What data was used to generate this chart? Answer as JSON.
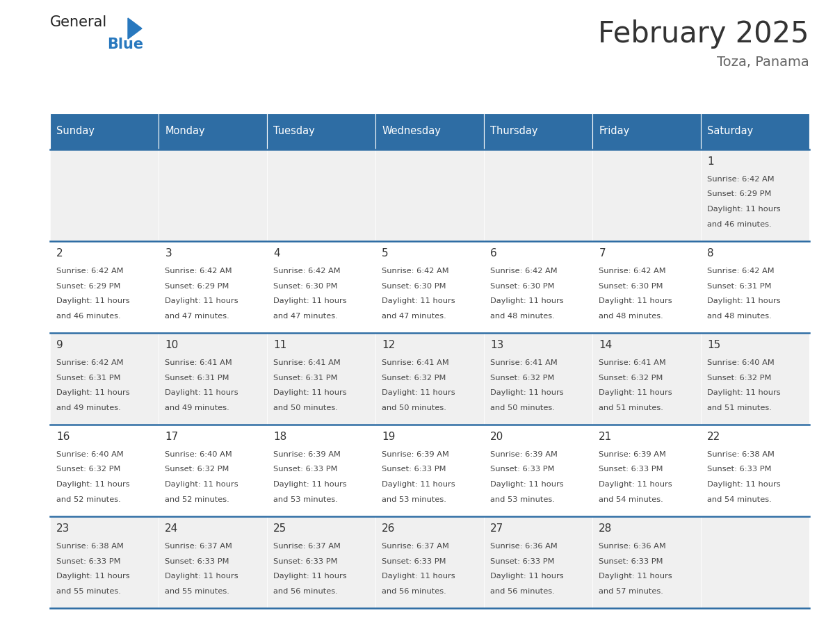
{
  "title": "February 2025",
  "subtitle": "Toza, Panama",
  "days_of_week": [
    "Sunday",
    "Monday",
    "Tuesday",
    "Wednesday",
    "Thursday",
    "Friday",
    "Saturday"
  ],
  "header_bg": "#2E6DA4",
  "header_text": "#FFFFFF",
  "cell_bg_odd": "#F0F0F0",
  "cell_bg_even": "#FFFFFF",
  "cell_text": "#444444",
  "day_num_color": "#333333",
  "border_color": "#2E6DA4",
  "title_color": "#333333",
  "subtitle_color": "#666666",
  "logo_general_color": "#222222",
  "logo_blue_color": "#2878BE",
  "background": "#FFFFFF",
  "calendar": [
    [
      null,
      null,
      null,
      null,
      null,
      null,
      {
        "day": 1,
        "sunrise": "6:42 AM",
        "sunset": "6:29 PM",
        "daylight_hours": 11,
        "daylight_minutes": 46
      }
    ],
    [
      {
        "day": 2,
        "sunrise": "6:42 AM",
        "sunset": "6:29 PM",
        "daylight_hours": 11,
        "daylight_minutes": 46
      },
      {
        "day": 3,
        "sunrise": "6:42 AM",
        "sunset": "6:29 PM",
        "daylight_hours": 11,
        "daylight_minutes": 47
      },
      {
        "day": 4,
        "sunrise": "6:42 AM",
        "sunset": "6:30 PM",
        "daylight_hours": 11,
        "daylight_minutes": 47
      },
      {
        "day": 5,
        "sunrise": "6:42 AM",
        "sunset": "6:30 PM",
        "daylight_hours": 11,
        "daylight_minutes": 47
      },
      {
        "day": 6,
        "sunrise": "6:42 AM",
        "sunset": "6:30 PM",
        "daylight_hours": 11,
        "daylight_minutes": 48
      },
      {
        "day": 7,
        "sunrise": "6:42 AM",
        "sunset": "6:30 PM",
        "daylight_hours": 11,
        "daylight_minutes": 48
      },
      {
        "day": 8,
        "sunrise": "6:42 AM",
        "sunset": "6:31 PM",
        "daylight_hours": 11,
        "daylight_minutes": 48
      }
    ],
    [
      {
        "day": 9,
        "sunrise": "6:42 AM",
        "sunset": "6:31 PM",
        "daylight_hours": 11,
        "daylight_minutes": 49
      },
      {
        "day": 10,
        "sunrise": "6:41 AM",
        "sunset": "6:31 PM",
        "daylight_hours": 11,
        "daylight_minutes": 49
      },
      {
        "day": 11,
        "sunrise": "6:41 AM",
        "sunset": "6:31 PM",
        "daylight_hours": 11,
        "daylight_minutes": 50
      },
      {
        "day": 12,
        "sunrise": "6:41 AM",
        "sunset": "6:32 PM",
        "daylight_hours": 11,
        "daylight_minutes": 50
      },
      {
        "day": 13,
        "sunrise": "6:41 AM",
        "sunset": "6:32 PM",
        "daylight_hours": 11,
        "daylight_minutes": 50
      },
      {
        "day": 14,
        "sunrise": "6:41 AM",
        "sunset": "6:32 PM",
        "daylight_hours": 11,
        "daylight_minutes": 51
      },
      {
        "day": 15,
        "sunrise": "6:40 AM",
        "sunset": "6:32 PM",
        "daylight_hours": 11,
        "daylight_minutes": 51
      }
    ],
    [
      {
        "day": 16,
        "sunrise": "6:40 AM",
        "sunset": "6:32 PM",
        "daylight_hours": 11,
        "daylight_minutes": 52
      },
      {
        "day": 17,
        "sunrise": "6:40 AM",
        "sunset": "6:32 PM",
        "daylight_hours": 11,
        "daylight_minutes": 52
      },
      {
        "day": 18,
        "sunrise": "6:39 AM",
        "sunset": "6:33 PM",
        "daylight_hours": 11,
        "daylight_minutes": 53
      },
      {
        "day": 19,
        "sunrise": "6:39 AM",
        "sunset": "6:33 PM",
        "daylight_hours": 11,
        "daylight_minutes": 53
      },
      {
        "day": 20,
        "sunrise": "6:39 AM",
        "sunset": "6:33 PM",
        "daylight_hours": 11,
        "daylight_minutes": 53
      },
      {
        "day": 21,
        "sunrise": "6:39 AM",
        "sunset": "6:33 PM",
        "daylight_hours": 11,
        "daylight_minutes": 54
      },
      {
        "day": 22,
        "sunrise": "6:38 AM",
        "sunset": "6:33 PM",
        "daylight_hours": 11,
        "daylight_minutes": 54
      }
    ],
    [
      {
        "day": 23,
        "sunrise": "6:38 AM",
        "sunset": "6:33 PM",
        "daylight_hours": 11,
        "daylight_minutes": 55
      },
      {
        "day": 24,
        "sunrise": "6:37 AM",
        "sunset": "6:33 PM",
        "daylight_hours": 11,
        "daylight_minutes": 55
      },
      {
        "day": 25,
        "sunrise": "6:37 AM",
        "sunset": "6:33 PM",
        "daylight_hours": 11,
        "daylight_minutes": 56
      },
      {
        "day": 26,
        "sunrise": "6:37 AM",
        "sunset": "6:33 PM",
        "daylight_hours": 11,
        "daylight_minutes": 56
      },
      {
        "day": 27,
        "sunrise": "6:36 AM",
        "sunset": "6:33 PM",
        "daylight_hours": 11,
        "daylight_minutes": 56
      },
      {
        "day": 28,
        "sunrise": "6:36 AM",
        "sunset": "6:33 PM",
        "daylight_hours": 11,
        "daylight_minutes": 57
      },
      null
    ]
  ]
}
